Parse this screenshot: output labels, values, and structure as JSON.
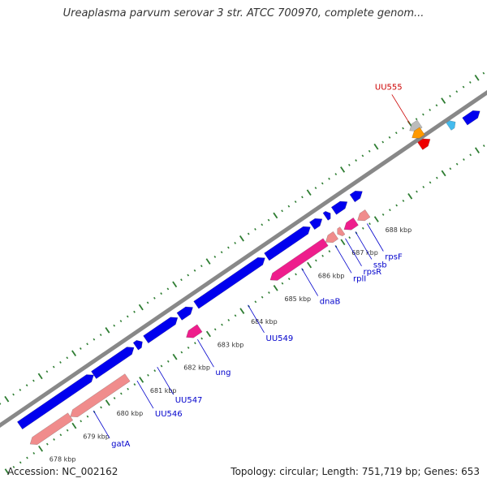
{
  "title": "Ureaplasma parvum serovar 3 str. ATCC 700970, complete genom...",
  "footer": {
    "accession": "Accession: NC_002162",
    "summary": "Topology: circular; Length: 751,719 bp; Genes: 653"
  },
  "colors": {
    "backbone": "#888888",
    "tick_major": "#2e7d32",
    "forward_gene": "#0000ee",
    "reverse_gene": "#f08c8c",
    "reverse_gene_alt": "#ee1e8c",
    "highlight_label": "#cc0000",
    "gene_label": "#0000cc",
    "gray_gene": "#bbbbbb",
    "orange_gene": "#ff9900",
    "red_gene": "#ee0000",
    "cyan_gene": "#44bbee"
  },
  "scale": {
    "unit": "kbp",
    "ticks": [
      {
        "label": "678 kbp",
        "kb": 678
      },
      {
        "label": "679 kbp",
        "kb": 679
      },
      {
        "label": "680 kbp",
        "kb": 680
      },
      {
        "label": "681 kbp",
        "kb": 681
      },
      {
        "label": "682 kbp",
        "kb": 682
      },
      {
        "label": "683 kbp",
        "kb": 683
      },
      {
        "label": "684 kbp",
        "kb": 684
      },
      {
        "label": "685 kbp",
        "kb": 685
      },
      {
        "label": "686 kbp",
        "kb": 686
      },
      {
        "label": "687 kbp",
        "kb": 687
      },
      {
        "label": "688 kbp",
        "kb": 688
      }
    ]
  },
  "genes": [
    {
      "strand": "forward",
      "start": 677.9,
      "end": 680.1,
      "color": "forward_gene"
    },
    {
      "strand": "forward",
      "start": 680.1,
      "end": 681.3,
      "color": "forward_gene"
    },
    {
      "strand": "forward",
      "start": 681.35,
      "end": 681.55,
      "color": "forward_gene"
    },
    {
      "strand": "forward",
      "start": 681.65,
      "end": 682.6,
      "color": "forward_gene"
    },
    {
      "strand": "forward",
      "start": 682.65,
      "end": 683.05,
      "color": "forward_gene"
    },
    {
      "strand": "forward",
      "start": 683.15,
      "end": 685.2,
      "color": "forward_gene"
    },
    {
      "strand": "forward",
      "start": 685.25,
      "end": 686.55,
      "color": "forward_gene"
    },
    {
      "strand": "forward",
      "start": 686.6,
      "end": 686.9,
      "color": "forward_gene"
    },
    {
      "strand": "forward",
      "start": 687.0,
      "end": 687.15,
      "color": "forward_gene"
    },
    {
      "strand": "forward",
      "start": 687.25,
      "end": 687.65,
      "color": "forward_gene"
    },
    {
      "strand": "forward",
      "start": 687.8,
      "end": 688.1,
      "color": "forward_gene"
    },
    {
      "strand": "forward",
      "start": 691.15,
      "end": 691.6,
      "color": "forward_gene"
    },
    {
      "strand": "reverse",
      "start": 677.85,
      "end": 679.05,
      "color": "reverse_gene"
    },
    {
      "strand": "reverse",
      "start": 679.05,
      "end": 680.75,
      "color": "reverse_gene"
    },
    {
      "strand": "reverse",
      "start": 682.5,
      "end": 682.9,
      "color": "reverse_gene_alt"
    },
    {
      "strand": "reverse",
      "start": 685.0,
      "end": 686.65,
      "color": "reverse_gene_alt"
    },
    {
      "strand": "reverse",
      "start": 686.65,
      "end": 686.95,
      "color": "reverse_gene"
    },
    {
      "strand": "reverse",
      "start": 687.0,
      "end": 687.15,
      "color": "reverse_gene"
    },
    {
      "strand": "reverse",
      "start": 687.2,
      "end": 687.55,
      "color": "reverse_gene_alt"
    },
    {
      "strand": "reverse",
      "start": 687.6,
      "end": 687.9,
      "color": "reverse_gene"
    }
  ],
  "outer_genes": [
    {
      "strand": "reverse",
      "ring": 1,
      "start": 689.9,
      "end": 690.2,
      "color": "gray_gene"
    },
    {
      "strand": "reverse",
      "ring": 2,
      "start": 689.85,
      "end": 690.15,
      "color": "orange_gene"
    },
    {
      "strand": "forward",
      "ring": 3,
      "start": 689.9,
      "end": 690.2,
      "color": "red_gene"
    },
    {
      "strand": "forward",
      "ring": 3,
      "start": 690.75,
      "end": 690.95,
      "color": "cyan_gene"
    }
  ],
  "labels": [
    {
      "text": "gatA",
      "kb": 679.6,
      "color": "gene_label"
    },
    {
      "text": "UU546",
      "kb": 680.9,
      "color": "gene_label"
    },
    {
      "text": "UU547",
      "kb": 681.5,
      "color": "gene_label"
    },
    {
      "text": "ung",
      "kb": 682.7,
      "color": "gene_label"
    },
    {
      "text": "UU549",
      "kb": 684.2,
      "color": "gene_label"
    },
    {
      "text": "dnaB",
      "kb": 685.8,
      "color": "gene_label"
    },
    {
      "text": "rplI",
      "kb": 686.8,
      "color": "gene_label"
    },
    {
      "text": "rpsR",
      "kb": 687.1,
      "color": "gene_label"
    },
    {
      "text": "ssb",
      "kb": 687.4,
      "color": "gene_label"
    },
    {
      "text": "rpsF",
      "kb": 687.75,
      "color": "gene_label"
    },
    {
      "text": "UU555",
      "kb": 690.0,
      "color": "highlight_label"
    }
  ]
}
